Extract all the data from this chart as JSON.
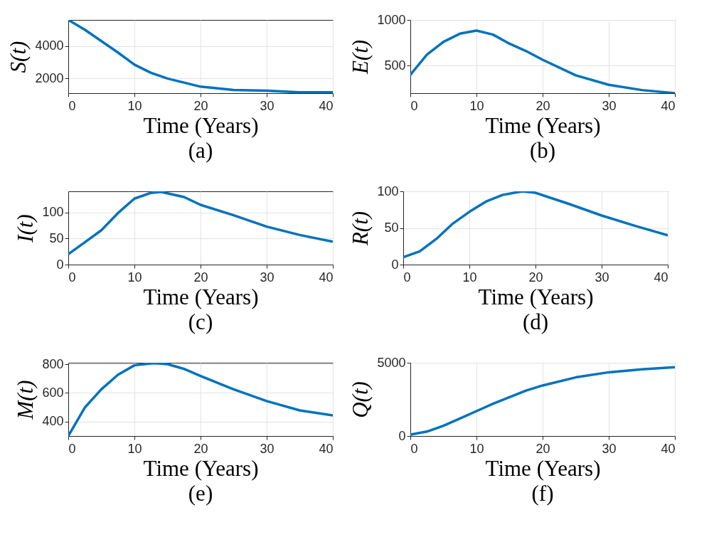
{
  "chart_data": [
    {
      "type": "line",
      "title": "(a)",
      "xlabel": "Time (Years)",
      "ylabel": "S(t)",
      "x": [
        0,
        2.5,
        5,
        7.5,
        10,
        12.5,
        15,
        17.5,
        20,
        25,
        30,
        35,
        40
      ],
      "series": [
        {
          "color": "#0072bd",
          "values": [
            5600,
            5000,
            4300,
            3600,
            2850,
            2350,
            2000,
            1750,
            1500,
            1300,
            1250,
            1150,
            1150
          ]
        }
      ],
      "xlim": [
        0,
        40
      ],
      "xticks": [
        0,
        10,
        20,
        30,
        40
      ],
      "ylim": [
        1100,
        5600
      ],
      "yticks": [
        2000,
        4000
      ],
      "grid": true
    },
    {
      "type": "line",
      "title": "(b)",
      "xlabel": "Time (Years)",
      "ylabel": "E(t)",
      "x": [
        0,
        2.5,
        5,
        7.5,
        10,
        12.5,
        15,
        17.5,
        20,
        25,
        30,
        35,
        40
      ],
      "series": [
        {
          "color": "#0072bd",
          "values": [
            400,
            620,
            760,
            850,
            883,
            840,
            740,
            660,
            565,
            395,
            291,
            234,
            200
          ]
        }
      ],
      "xlim": [
        0,
        40
      ],
      "xticks": [
        0,
        10,
        20,
        30,
        40
      ],
      "ylim": [
        200,
        1000
      ],
      "yticks": [
        500,
        1000
      ],
      "grid": true
    },
    {
      "type": "line",
      "title": "(c)",
      "xlabel": "Time (Years)",
      "ylabel": "I(t)",
      "x": [
        0,
        2.5,
        5,
        7.5,
        10,
        12.5,
        14,
        17.5,
        20,
        25,
        30,
        35,
        40
      ],
      "series": [
        {
          "color": "#0072bd",
          "values": [
            20,
            43,
            66,
            99,
            127,
            138,
            140,
            130,
            115,
            95,
            73,
            57,
            44
          ]
        }
      ],
      "xlim": [
        0,
        40
      ],
      "xticks": [
        0,
        10,
        20,
        30,
        40
      ],
      "ylim": [
        0,
        141
      ],
      "yticks": [
        0,
        50,
        100
      ],
      "grid": true
    },
    {
      "type": "line",
      "title": "(d)",
      "xlabel": "Time (Years)",
      "ylabel": "R(t)",
      "x": [
        0,
        2.5,
        5,
        7.5,
        10,
        12.5,
        15,
        18,
        20,
        25,
        30,
        35,
        40
      ],
      "series": [
        {
          "color": "#0072bd",
          "values": [
            10,
            18,
            35,
            56,
            72,
            86,
            95,
            100,
            98,
            83,
            67,
            53,
            40
          ]
        }
      ],
      "xlim": [
        0,
        40
      ],
      "xticks": [
        0,
        10,
        20,
        30,
        40
      ],
      "ylim": [
        0,
        100
      ],
      "yticks": [
        0,
        50,
        100
      ],
      "grid": true
    },
    {
      "type": "line",
      "title": "(e)",
      "xlabel": "Time (Years)",
      "ylabel": "M(t)",
      "x": [
        0,
        2.5,
        5,
        7.5,
        10,
        13,
        15,
        17.5,
        20,
        25,
        30,
        35,
        40
      ],
      "series": [
        {
          "color": "#0072bd",
          "values": [
            300,
            498,
            625,
            726,
            792,
            808,
            800,
            767,
            718,
            625,
            543,
            478,
            443
          ]
        }
      ],
      "xlim": [
        0,
        40
      ],
      "xticks": [
        0,
        10,
        20,
        30,
        40
      ],
      "ylim": [
        300,
        810
      ],
      "yticks": [
        400,
        600,
        800
      ],
      "grid": true
    },
    {
      "type": "line",
      "title": "(f)",
      "xlabel": "Time (Years)",
      "ylabel": "Q(t)",
      "x": [
        0,
        2.5,
        5,
        7.5,
        10,
        12.5,
        15,
        17.5,
        20,
        25,
        30,
        35,
        40
      ],
      "series": [
        {
          "color": "#0072bd",
          "values": [
            100,
            300,
            700,
            1200,
            1700,
            2200,
            2650,
            3100,
            3450,
            4000,
            4350,
            4550,
            4700
          ]
        }
      ],
      "xlim": [
        0,
        40
      ],
      "xticks": [
        0,
        10,
        20,
        30,
        40
      ],
      "ylim": [
        0,
        5000
      ],
      "yticks": [
        0,
        5000
      ],
      "grid": true
    }
  ]
}
